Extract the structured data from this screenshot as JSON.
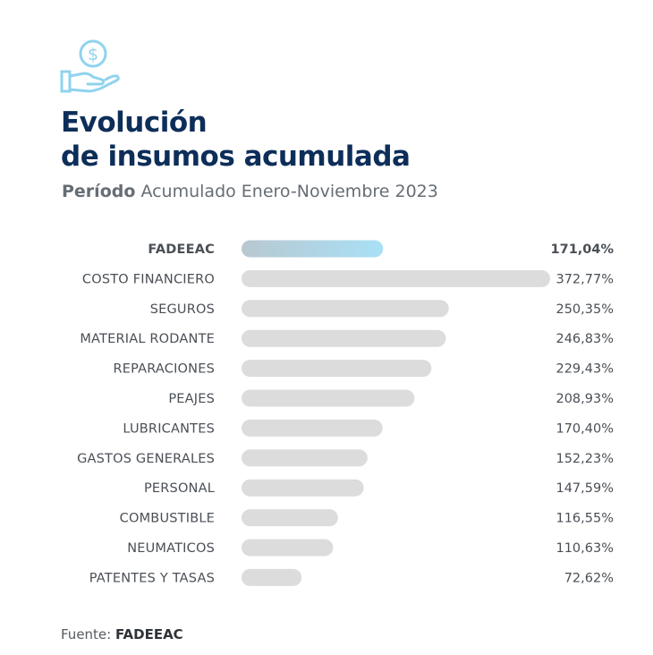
{
  "header": {
    "icon": "dollar-hand-icon",
    "title_line1": "Evolución",
    "title_line2": "de insumos acumulada",
    "subtitle_bold": "Período",
    "subtitle_rest": " Acumulado Enero-Noviembre 2023"
  },
  "footer": {
    "source_prefix": "Fuente: ",
    "source_name": "FADEEAC"
  },
  "colors": {
    "highlight_start": "#b8c8d0",
    "highlight_end": "#a9e0f6",
    "bar": "#dcdcdc",
    "title": "#0d2e59"
  },
  "chart_data": {
    "type": "bar",
    "orientation": "horizontal",
    "title": "",
    "xlabel": "",
    "ylabel": "",
    "xlim": [
      0,
      372.77
    ],
    "grid": false,
    "legend": "none",
    "categories": [
      "FADEEAC",
      "COSTO FINANCIERO",
      "SEGUROS",
      "MATERIAL RODANTE",
      "REPARACIONES",
      "PEAJES",
      "LUBRICANTES",
      "GASTOS GENERALES",
      "PERSONAL",
      "COMBUSTIBLE",
      "NEUMATICOS",
      "PATENTES Y TASAS"
    ],
    "values": [
      171.04,
      372.77,
      250.35,
      246.83,
      229.43,
      208.93,
      170.4,
      152.23,
      147.59,
      116.55,
      110.63,
      72.62
    ],
    "value_labels": [
      "171,04%",
      "372,77%",
      "250,35%",
      "246,83%",
      "229,43%",
      "208,93%",
      "170,40%",
      "152,23%",
      "147,59%",
      "116,55%",
      "110,63%",
      "72,62%"
    ],
    "highlighted_category": "FADEEAC"
  }
}
